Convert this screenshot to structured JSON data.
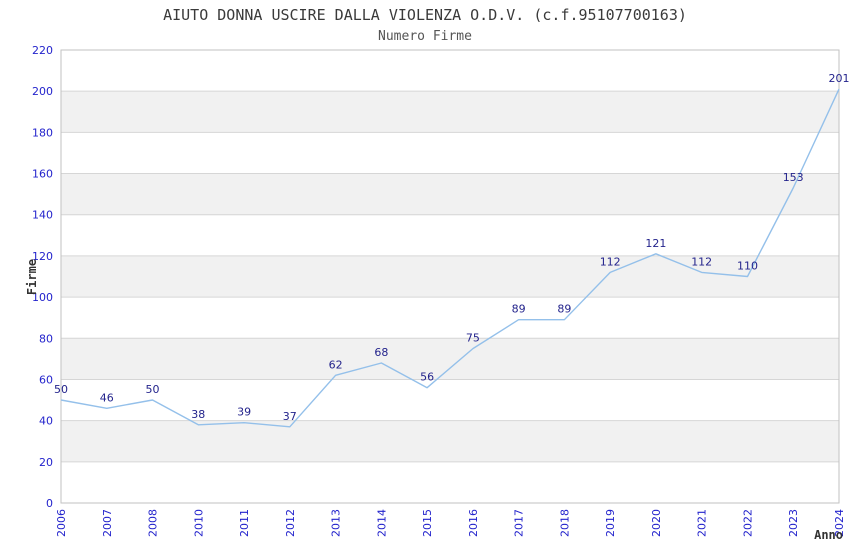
{
  "chart_data": {
    "type": "line",
    "title": "AIUTO DONNA USCIRE DALLA VIOLENZA O.D.V. (c.f.95107700163)",
    "subtitle": "Numero Firme",
    "xlabel": "Anno",
    "ylabel": "Firme",
    "categories": [
      "2006",
      "2007",
      "2008",
      "2010",
      "2011",
      "2012",
      "2013",
      "2014",
      "2015",
      "2016",
      "2017",
      "2018",
      "2019",
      "2020",
      "2021",
      "2022",
      "2023",
      "2024"
    ],
    "values": [
      50,
      46,
      50,
      38,
      39,
      37,
      62,
      68,
      56,
      75,
      89,
      89,
      112,
      121,
      112,
      110,
      153,
      201
    ],
    "yticks": [
      0,
      20,
      40,
      60,
      80,
      100,
      120,
      140,
      160,
      180,
      200,
      220
    ],
    "ylim": [
      0,
      220
    ],
    "grid": true,
    "legend": "none",
    "show_point_labels": true,
    "x_tick_rotation_deg": -90,
    "colors": {
      "line": "#94c0ea",
      "tick_label": "#2323cc",
      "data_label": "#23238c",
      "band_fill": "#f1f1f1",
      "gridline": "#d6d6d6",
      "plot_border": "#c2c2c2",
      "background": "#ffffff",
      "title": "#3a3a3a",
      "axis_title": "#333333"
    }
  }
}
